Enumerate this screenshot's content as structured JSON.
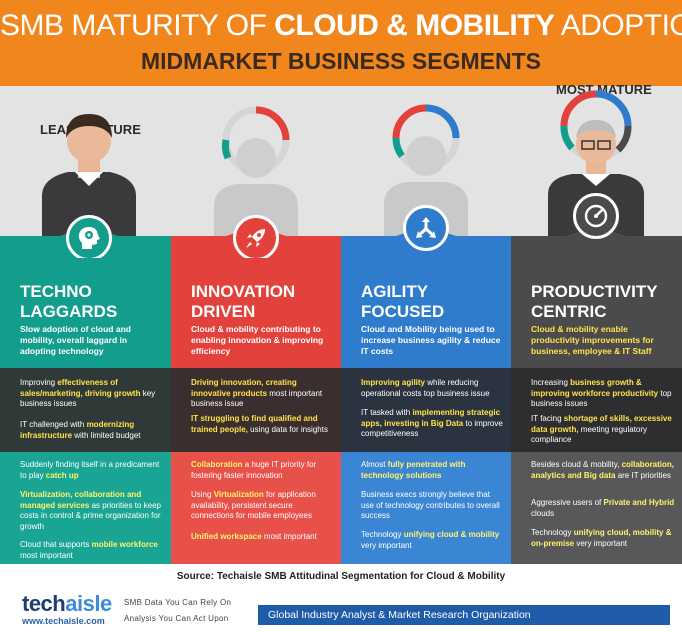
{
  "header": {
    "line1_pre": "SMB MATURITY OF ",
    "line1_bold": "CLOUD & MOBILITY",
    "line1_post": " ADOPTION",
    "line2": "MIDMARKET BUSINESS SEGMENTS"
  },
  "labels": {
    "least": "LEAST MATURE",
    "most": "MOST MATURE"
  },
  "colors": {
    "orange": "#f0861c",
    "teal": "#139d8c",
    "red": "#e2423b",
    "blue": "#2f7bcc",
    "grey": "#4b4b4e",
    "darkband": "#2e2e30"
  },
  "segments": [
    {
      "icon": "gear-head-icon",
      "title1": "TECHNO",
      "title2": "LAGGARDS",
      "subtitle": "Slow adoption of cloud and mobility, overall laggard in adopting technology",
      "dark": [
        {
          "pre": "Improving ",
          "hl": "effectiveness of sales/marketing, driving growth",
          "post": " key business issues"
        },
        {
          "pre": "IT challenged with ",
          "hl": "modernizing infrastructure",
          "post": " with limited budget"
        }
      ],
      "light": [
        {
          "pre": "Suddenly finding itself in a predicament to play ",
          "hl": "catch up",
          "post": ""
        },
        {
          "pre": "",
          "hl": "Virtualization, collaboration and managed services",
          "post": " as priorities to keep costs in control & prime organization for growth"
        },
        {
          "pre": "Cloud that supports ",
          "hl": "mobile workforce",
          "post": " most important"
        }
      ]
    },
    {
      "icon": "rocket-icon",
      "title1": "INNOVATION",
      "title2": "DRIVEN",
      "subtitle": "Cloud & mobility contributing to enabling innovation & improving efficiency",
      "dark": [
        {
          "pre": "",
          "hl": "Driving innovation, creating innovative products",
          "post": " most important business issue"
        },
        {
          "pre": "",
          "hl": "IT struggling to find qualified and trained people,",
          "post": " using data for insights"
        }
      ],
      "light": [
        {
          "pre": "",
          "hl": "Collaboration",
          "post": " a huge IT priority for fostering faster innovation"
        },
        {
          "pre": "Using ",
          "hl": "Virtualization",
          "post": " for application availability, persistent secure connections for mobile employees"
        },
        {
          "pre": "",
          "hl": "Unified workspace",
          "post": " most important"
        }
      ]
    },
    {
      "icon": "direction-arrows-icon",
      "title1": "AGILITY",
      "title2": "FOCUSED",
      "subtitle": "Cloud and Mobility being used to increase business agility & reduce IT costs",
      "dark": [
        {
          "pre": "",
          "hl": "Improving agility",
          "post": " while reducing operational costs top business issue"
        },
        {
          "pre": "IT tasked with ",
          "hl": "implementing strategic apps, investing in Big Data",
          "post": " to improve competitiveness"
        }
      ],
      "light": [
        {
          "pre": "Almost ",
          "hl": "fully penetrated with technology solutions",
          "post": ""
        },
        {
          "pre": "Business execs strongly believe that use of technology contributes to overall success",
          "hl": "",
          "post": ""
        },
        {
          "pre": "Technology ",
          "hl": "unifying cloud & mobility",
          "post": " very important"
        }
      ]
    },
    {
      "icon": "speedometer-icon",
      "title1": "PRODUCTIVITY",
      "title2": "CENTRIC",
      "subtitle": "Cloud & mobility enable productivity improvements for business, employee & IT Staff",
      "dark": [
        {
          "pre": "Increasing ",
          "hl": "business growth & improving workforce productivity",
          "post": " top business issues"
        },
        {
          "pre": "IT facing ",
          "hl": "shortage of skills, excessive data growth,",
          "post": " meeting regulatory compliance"
        }
      ],
      "light": [
        {
          "pre": "Besides cloud & mobility, ",
          "hl": "collaboration, analytics and Big data",
          "post": " are IT priorities"
        },
        {
          "pre": "Aggressive users of ",
          "hl": "Private and Hybrid",
          "post": " clouds"
        },
        {
          "pre": "Technology ",
          "hl": "unifying cloud, mobility & on-premise",
          "post": " very important"
        }
      ]
    }
  ],
  "footer": {
    "source": "Source: Techaisle SMB Attitudinal Segmentation for Cloud & Mobility",
    "logo_a": "tech",
    "logo_b": "aisle",
    "url": "www.techaisle.com",
    "tag1": "SMB Data You Can Rely On",
    "tag2": "Analysis You Can Act Upon",
    "bar": "Global Industry Analyst & Market Research Organization"
  }
}
